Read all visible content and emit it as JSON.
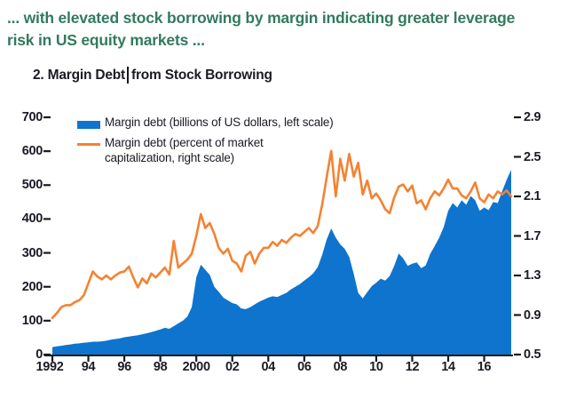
{
  "header": {
    "line1": "... with elevated stock borrowing by margin indicating greater leverage",
    "line2": "risk in US equity markets ..."
  },
  "figure": {
    "title_before_caret": "2. Margin Debt",
    "title_after_caret": "from Stock Borrowing"
  },
  "legend": {
    "series1_label": "Margin debt (billions of US dollars, left scale)",
    "series2_label": "Margin debt (percent of market capitalization, right scale)"
  },
  "colors": {
    "area_blue": "#0E74CE",
    "line_orange": "#F48232",
    "axis_black": "#1a1a1a",
    "header_green": "#337a5f",
    "text_dark": "#1b1b26"
  },
  "chart_data": {
    "type": "area",
    "title": "2. Margin Debt from Stock Borrowing",
    "x_start": 1992.0,
    "x_step": 0.25,
    "x_axis": {
      "min": 1992,
      "max": 2017.6,
      "tick_years": [
        1992,
        1994,
        1996,
        1998,
        2000,
        2002,
        2004,
        2006,
        2008,
        2010,
        2012,
        2014,
        2016
      ],
      "tick_labels": [
        "1992",
        "94",
        "96",
        "98",
        "2000",
        "02",
        "04",
        "06",
        "08",
        "10",
        "12",
        "14",
        "16"
      ]
    },
    "left_axis": {
      "min": 0,
      "max": 700,
      "ticks": [
        700,
        600,
        500,
        400,
        300,
        200,
        100,
        0
      ]
    },
    "right_axis": {
      "min": 0.5,
      "max": 2.9,
      "ticks": [
        2.9,
        2.5,
        2.1,
        1.7,
        1.3,
        0.9,
        0.5
      ]
    },
    "grid": false,
    "legend_position": "top-left",
    "series": [
      {
        "name": "Margin debt (billions of US dollars, left scale)",
        "style": "area",
        "scale": "left",
        "values": [
          22,
          24,
          26,
          28,
          30,
          32,
          33,
          35,
          36,
          38,
          38,
          39,
          41,
          44,
          46,
          48,
          51,
          53,
          55,
          57,
          60,
          63,
          66,
          70,
          74,
          79,
          76,
          84,
          92,
          100,
          112,
          140,
          228,
          265,
          250,
          235,
          200,
          185,
          168,
          160,
          152,
          148,
          136,
          134,
          140,
          148,
          156,
          162,
          168,
          172,
          170,
          176,
          182,
          192,
          200,
          208,
          218,
          228,
          240,
          258,
          295,
          340,
          372,
          345,
          325,
          312,
          288,
          238,
          182,
          166,
          184,
          202,
          212,
          224,
          218,
          232,
          262,
          298,
          284,
          262,
          268,
          272,
          255,
          263,
          297,
          320,
          345,
          376,
          424,
          447,
          434,
          455,
          442,
          468,
          455,
          424,
          434,
          426,
          450,
          447,
          482,
          516,
          545
        ]
      },
      {
        "name": "Margin debt (percent of market capitalization, right scale)",
        "style": "line",
        "scale": "right",
        "values": [
          0.87,
          0.92,
          0.98,
          1.0,
          1.0,
          1.03,
          1.05,
          1.1,
          1.22,
          1.34,
          1.29,
          1.26,
          1.3,
          1.26,
          1.3,
          1.33,
          1.34,
          1.39,
          1.28,
          1.18,
          1.27,
          1.22,
          1.32,
          1.28,
          1.33,
          1.38,
          1.31,
          1.65,
          1.38,
          1.42,
          1.46,
          1.52,
          1.7,
          1.92,
          1.78,
          1.83,
          1.72,
          1.58,
          1.52,
          1.57,
          1.45,
          1.42,
          1.34,
          1.5,
          1.54,
          1.42,
          1.52,
          1.58,
          1.58,
          1.64,
          1.6,
          1.66,
          1.63,
          1.68,
          1.72,
          1.7,
          1.74,
          1.78,
          1.73,
          1.8,
          2.02,
          2.3,
          2.56,
          2.1,
          2.48,
          2.26,
          2.53,
          2.3,
          2.44,
          2.12,
          2.26,
          2.08,
          2.13,
          2.06,
          1.97,
          1.93,
          2.09,
          2.2,
          2.22,
          2.15,
          2.21,
          2.03,
          2.06,
          1.97,
          2.08,
          2.15,
          2.11,
          2.18,
          2.27,
          2.18,
          2.18,
          2.11,
          2.08,
          2.15,
          2.24,
          2.08,
          2.04,
          2.12,
          2.08,
          2.15,
          2.12,
          2.16,
          2.1
        ]
      }
    ]
  }
}
